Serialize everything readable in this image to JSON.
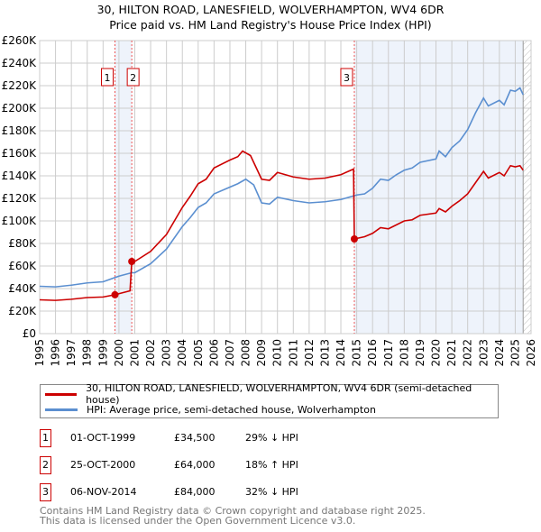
{
  "chart_data": {
    "type": "line",
    "title": "30, HILTON ROAD, LANESFIELD, WOLVERHAMPTON, WV4 6DR",
    "subtitle": "Price paid vs. HM Land Registry's House Price Index (HPI)",
    "ylim": [
      0,
      260000
    ],
    "xlim": [
      1995,
      2026
    ],
    "yticks": [
      {
        "v": 0,
        "label": "£0"
      },
      {
        "v": 20000,
        "label": "£20K"
      },
      {
        "v": 40000,
        "label": "£40K"
      },
      {
        "v": 60000,
        "label": "£60K"
      },
      {
        "v": 80000,
        "label": "£80K"
      },
      {
        "v": 100000,
        "label": "£100K"
      },
      {
        "v": 120000,
        "label": "£120K"
      },
      {
        "v": 140000,
        "label": "£140K"
      },
      {
        "v": 160000,
        "label": "£160K"
      },
      {
        "v": 180000,
        "label": "£180K"
      },
      {
        "v": 200000,
        "label": "£200K"
      },
      {
        "v": 220000,
        "label": "£220K"
      },
      {
        "v": 240000,
        "label": "£240K"
      },
      {
        "v": 260000,
        "label": "£260K"
      }
    ],
    "xticks": [
      "1995",
      "1996",
      "1997",
      "1998",
      "1999",
      "2000",
      "2001",
      "2002",
      "2003",
      "2004",
      "2005",
      "2006",
      "2007",
      "2008",
      "2009",
      "2010",
      "2011",
      "2012",
      "2013",
      "2014",
      "2015",
      "2016",
      "2017",
      "2018",
      "2019",
      "2020",
      "2021",
      "2022",
      "2023",
      "2024",
      "2025",
      "2026"
    ],
    "grid": true,
    "series": [
      {
        "name": "30, HILTON ROAD, LANESFIELD, WOLVERHAMPTON, WV4 6DR (semi-detached house)",
        "color": "#cc0000",
        "x": [
          1995,
          1996,
          1997,
          1998,
          1999,
          1999.75,
          2000.7,
          2000.81,
          2001,
          2002,
          2003,
          2004,
          2004.5,
          2005,
          2005.5,
          2006,
          2007,
          2007.5,
          2007.8,
          2008.3,
          2009,
          2009.5,
          2010,
          2011,
          2012,
          2013,
          2014,
          2014.8,
          2014.85,
          2015.5,
          2016,
          2016.5,
          2017,
          2018,
          2018.5,
          2019,
          2020,
          2020.2,
          2020.6,
          2021,
          2021.5,
          2022,
          2022.5,
          2023,
          2023.3,
          2024,
          2024.3,
          2024.7,
          2025,
          2025.3,
          2025.5
        ],
        "y": [
          30000,
          29500,
          30500,
          32000,
          32500,
          34500,
          38000,
          64000,
          64000,
          73000,
          88000,
          112000,
          122000,
          133000,
          137000,
          147000,
          154000,
          157000,
          162000,
          158000,
          137000,
          136000,
          143000,
          139000,
          137000,
          138000,
          141000,
          146000,
          84000,
          86000,
          89000,
          94000,
          93000,
          100000,
          101000,
          105000,
          107000,
          111000,
          108000,
          113000,
          118000,
          124000,
          134000,
          144000,
          138000,
          143000,
          140000,
          149000,
          148000,
          149000,
          145000
        ]
      },
      {
        "name": "HPI: Average price, semi-detached house, Wolverhampton",
        "color": "#5b8fd0",
        "x": [
          1995,
          1996,
          1997,
          1998,
          1999,
          2000,
          2000.8,
          2001,
          2002,
          2003,
          2004,
          2004.5,
          2005,
          2005.5,
          2006,
          2007,
          2007.5,
          2008,
          2008.5,
          2009,
          2009.5,
          2010,
          2011,
          2012,
          2013,
          2014,
          2014.5,
          2015,
          2015.5,
          2016,
          2016.5,
          2017,
          2017.5,
          2018,
          2018.5,
          2019,
          2020,
          2020.2,
          2020.6,
          2021,
          2021.5,
          2022,
          2022.5,
          2023,
          2023.3,
          2024,
          2024.3,
          2024.7,
          2025,
          2025.3,
          2025.5
        ],
        "y": [
          42000,
          41500,
          43000,
          45000,
          46000,
          51000,
          54000,
          54000,
          62000,
          75000,
          95000,
          103000,
          112000,
          116000,
          124000,
          130000,
          133000,
          137000,
          132000,
          116000,
          115000,
          121000,
          118000,
          116000,
          117000,
          119000,
          121000,
          123000,
          124000,
          129000,
          137000,
          136000,
          141000,
          145000,
          147000,
          152000,
          155000,
          162000,
          157000,
          165000,
          171000,
          181000,
          196000,
          209000,
          202000,
          207000,
          203000,
          216000,
          215000,
          218000,
          212000
        ]
      }
    ],
    "sales": [
      {
        "n": "1",
        "x": 1999.75,
        "y": 34500,
        "date": "01-OCT-1999",
        "price": "£34,500",
        "hpi": "29% ↓ HPI"
      },
      {
        "n": "2",
        "x": 2000.81,
        "y": 64000,
        "date": "25-OCT-2000",
        "price": "£64,000",
        "hpi": "18% ↑ HPI"
      },
      {
        "n": "3",
        "x": 2014.85,
        "y": 84000,
        "date": "06-NOV-2014",
        "price": "£84,000",
        "hpi": "32% ↓ HPI"
      }
    ],
    "legend_position": "below"
  },
  "footer": {
    "line1": "Contains HM Land Registry data © Crown copyright and database right 2025.",
    "line2": "This data is licensed under the Open Government Licence v3.0."
  }
}
